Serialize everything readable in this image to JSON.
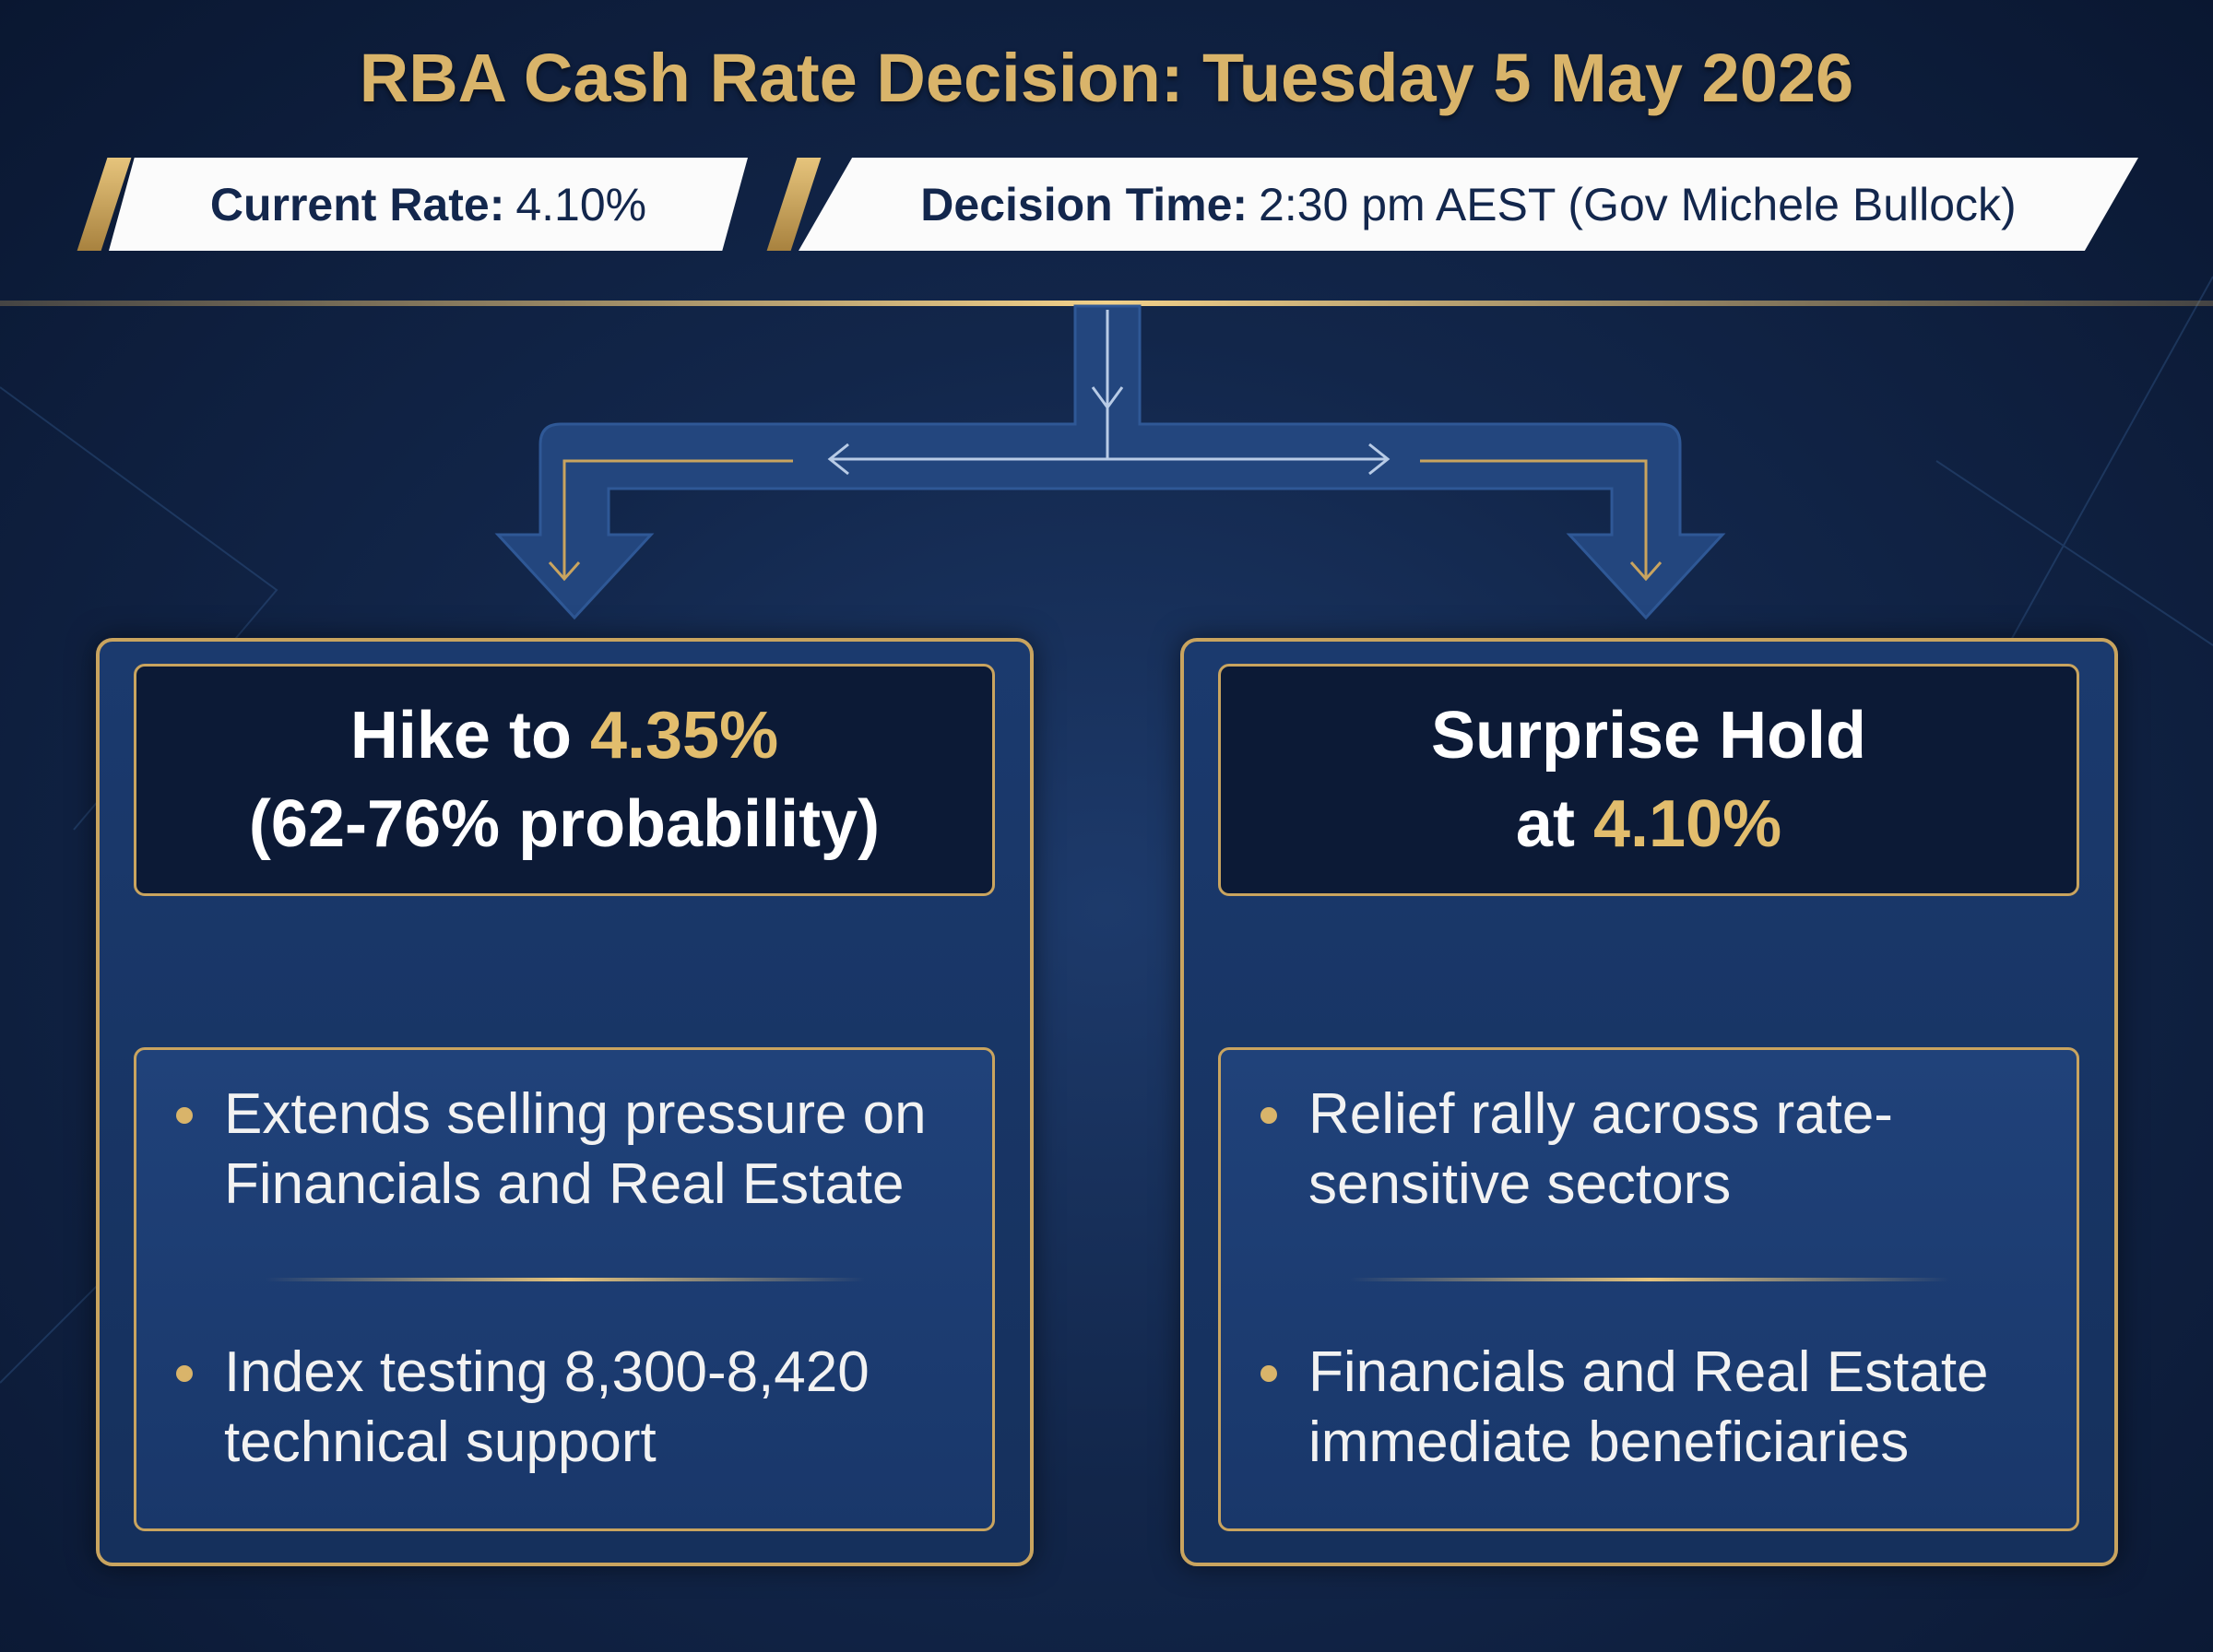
{
  "header": {
    "title": "RBA Cash Rate Decision: Tuesday 5 May 2026",
    "badges": [
      {
        "label": "Current Rate:",
        "value": "4.10%"
      },
      {
        "label": "Decision Time:",
        "value": "2:30 pm AEST (Gov Michele Bullock)"
      }
    ]
  },
  "scenarios": [
    {
      "heading_lines": [
        [
          {
            "text": "Hike to",
            "accent": false
          },
          {
            "text": "4.35%",
            "accent": true
          }
        ],
        [
          {
            "text": "(62-76% probability)",
            "accent": false
          }
        ]
      ],
      "bullets": [
        "Extends selling pressure on Financials and Real Estate",
        "Index testing 8,300-8,420 technical support"
      ]
    },
    {
      "heading_lines": [
        [
          {
            "text": "Surprise Hold",
            "accent": false
          }
        ],
        [
          {
            "text": "at",
            "accent": false
          },
          {
            "text": "4.10%",
            "accent": true
          }
        ]
      ],
      "bullets": [
        "Relief rally across rate-sensitive sectors",
        "Financials and Real Estate immediate beneficiaries"
      ]
    }
  ]
}
